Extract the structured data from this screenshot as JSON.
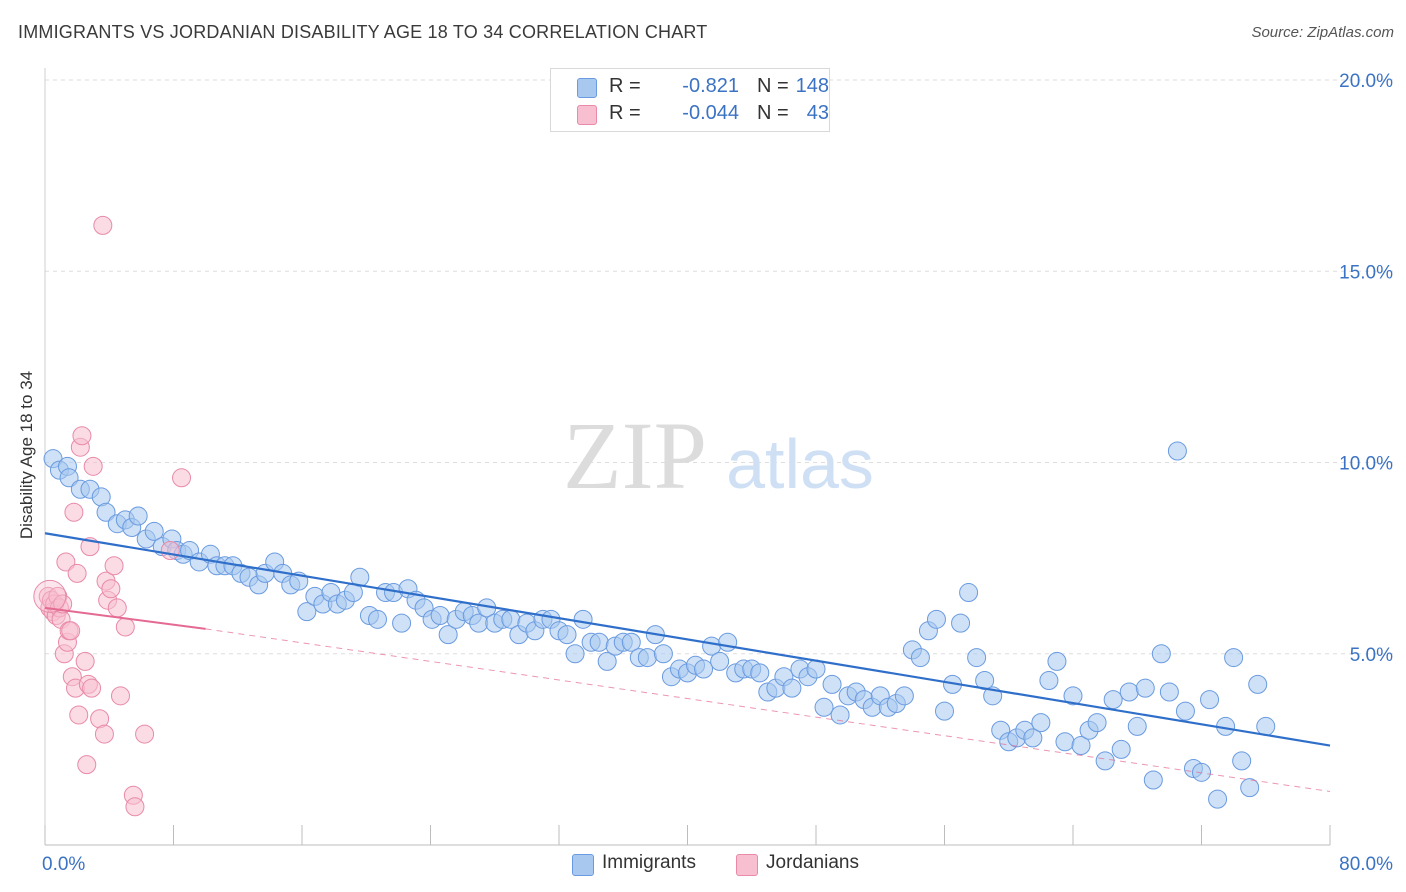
{
  "title": "IMMIGRANTS VS JORDANIAN DISABILITY AGE 18 TO 34 CORRELATION CHART",
  "source": "Source: ZipAtlas.com",
  "watermark": {
    "zip": "ZIP",
    "atlas": "atlas"
  },
  "legend": {
    "rows": [
      {
        "r_label": "R =",
        "r_value": "-0.821",
        "n_label": "N =",
        "n_value": "148",
        "color": "#a8c8f0",
        "border": "#6a9be0"
      },
      {
        "r_label": "R =",
        "r_value": "-0.044",
        "n_label": "N =",
        "n_value": "43",
        "color": "#f8bfd0",
        "border": "#e88aa8"
      }
    ]
  },
  "bottom_legend": [
    {
      "label": "Immigrants",
      "color": "#a8c8f0",
      "border": "#6a9be0"
    },
    {
      "label": "Jordanians",
      "color": "#f8bfd0",
      "border": "#e88aa8"
    }
  ],
  "chart_data": {
    "type": "scatter",
    "title": "IMMIGRANTS VS JORDANIAN DISABILITY AGE 18 TO 34 CORRELATION CHART",
    "xlabel": "",
    "ylabel": "Disability Age 18 to 34",
    "xlim": [
      0,
      80
    ],
    "ylim": [
      0,
      20
    ],
    "x_tick_labels": [
      {
        "value": 0,
        "label": "0.0%"
      },
      {
        "value": 80,
        "label": "80.0%"
      }
    ],
    "y_tick_labels": [
      {
        "value": 5,
        "label": "5.0%"
      },
      {
        "value": 10,
        "label": "10.0%"
      },
      {
        "value": 15,
        "label": "15.0%"
      },
      {
        "value": 20,
        "label": "20.0%"
      }
    ],
    "grid": true,
    "legend_position": "top-center",
    "series": [
      {
        "name": "Immigrants",
        "color": "#a8c8f0",
        "stroke": "#6a9be0",
        "trend": {
          "x": [
            0,
            80
          ],
          "y": [
            8.15,
            2.6
          ],
          "color": "#2f6fca"
        },
        "points": [
          [
            0.5,
            10.1
          ],
          [
            0.9,
            9.8
          ],
          [
            1.4,
            9.9
          ],
          [
            1.5,
            9.6
          ],
          [
            2.2,
            9.3
          ],
          [
            2.8,
            9.3
          ],
          [
            3.5,
            9.1
          ],
          [
            3.8,
            8.7
          ],
          [
            4.5,
            8.4
          ],
          [
            5.0,
            8.5
          ],
          [
            5.4,
            8.3
          ],
          [
            5.8,
            8.6
          ],
          [
            6.3,
            8.0
          ],
          [
            6.8,
            8.2
          ],
          [
            7.3,
            7.8
          ],
          [
            7.9,
            8.0
          ],
          [
            8.2,
            7.7
          ],
          [
            8.6,
            7.6
          ],
          [
            9.0,
            7.7
          ],
          [
            9.6,
            7.4
          ],
          [
            10.3,
            7.6
          ],
          [
            10.7,
            7.3
          ],
          [
            11.2,
            7.3
          ],
          [
            11.7,
            7.3
          ],
          [
            12.2,
            7.1
          ],
          [
            12.7,
            7.0
          ],
          [
            13.3,
            6.8
          ],
          [
            13.7,
            7.1
          ],
          [
            14.3,
            7.4
          ],
          [
            14.8,
            7.1
          ],
          [
            15.3,
            6.8
          ],
          [
            15.8,
            6.9
          ],
          [
            16.3,
            6.1
          ],
          [
            16.8,
            6.5
          ],
          [
            17.3,
            6.3
          ],
          [
            17.8,
            6.6
          ],
          [
            18.2,
            6.3
          ],
          [
            18.7,
            6.4
          ],
          [
            19.2,
            6.6
          ],
          [
            19.6,
            7.0
          ],
          [
            20.2,
            6.0
          ],
          [
            20.7,
            5.9
          ],
          [
            21.2,
            6.6
          ],
          [
            21.7,
            6.6
          ],
          [
            22.2,
            5.8
          ],
          [
            22.6,
            6.7
          ],
          [
            23.1,
            6.4
          ],
          [
            23.6,
            6.2
          ],
          [
            24.1,
            5.9
          ],
          [
            24.6,
            6.0
          ],
          [
            25.1,
            5.5
          ],
          [
            25.6,
            5.9
          ],
          [
            26.1,
            6.1
          ],
          [
            26.6,
            6.0
          ],
          [
            27.0,
            5.8
          ],
          [
            27.5,
            6.2
          ],
          [
            28.0,
            5.8
          ],
          [
            28.5,
            5.9
          ],
          [
            29.0,
            5.9
          ],
          [
            29.5,
            5.5
          ],
          [
            30.0,
            5.8
          ],
          [
            30.5,
            5.6
          ],
          [
            31.0,
            5.9
          ],
          [
            31.5,
            5.9
          ],
          [
            32.0,
            5.6
          ],
          [
            32.5,
            5.5
          ],
          [
            33.0,
            5.0
          ],
          [
            33.5,
            5.9
          ],
          [
            34.0,
            5.3
          ],
          [
            34.5,
            5.3
          ],
          [
            35.0,
            4.8
          ],
          [
            35.5,
            5.2
          ],
          [
            36.0,
            5.3
          ],
          [
            36.5,
            5.3
          ],
          [
            37.0,
            4.9
          ],
          [
            37.5,
            4.9
          ],
          [
            38.0,
            5.5
          ],
          [
            38.5,
            5.0
          ],
          [
            39.0,
            4.4
          ],
          [
            39.5,
            4.6
          ],
          [
            40.0,
            4.5
          ],
          [
            40.5,
            4.7
          ],
          [
            41.0,
            4.6
          ],
          [
            41.5,
            5.2
          ],
          [
            42.0,
            4.8
          ],
          [
            42.5,
            5.3
          ],
          [
            43.0,
            4.5
          ],
          [
            43.5,
            4.6
          ],
          [
            44.0,
            4.6
          ],
          [
            44.5,
            4.5
          ],
          [
            45.0,
            4.0
          ],
          [
            45.5,
            4.1
          ],
          [
            46.0,
            4.4
          ],
          [
            46.5,
            4.1
          ],
          [
            47.0,
            4.6
          ],
          [
            47.5,
            4.4
          ],
          [
            48.0,
            4.6
          ],
          [
            48.5,
            3.6
          ],
          [
            49.0,
            4.2
          ],
          [
            49.5,
            3.4
          ],
          [
            50.0,
            3.9
          ],
          [
            50.5,
            4.0
          ],
          [
            51.0,
            3.8
          ],
          [
            51.5,
            3.6
          ],
          [
            52.0,
            3.9
          ],
          [
            52.5,
            3.6
          ],
          [
            53.0,
            3.7
          ],
          [
            53.5,
            3.9
          ],
          [
            54.0,
            5.1
          ],
          [
            54.5,
            4.9
          ],
          [
            55.0,
            5.6
          ],
          [
            55.5,
            5.9
          ],
          [
            56.0,
            3.5
          ],
          [
            56.5,
            4.2
          ],
          [
            57.0,
            5.8
          ],
          [
            57.5,
            6.6
          ],
          [
            58.0,
            4.9
          ],
          [
            58.5,
            4.3
          ],
          [
            59.0,
            3.9
          ],
          [
            59.5,
            3.0
          ],
          [
            60.0,
            2.7
          ],
          [
            60.5,
            2.8
          ],
          [
            61.0,
            3.0
          ],
          [
            61.5,
            2.8
          ],
          [
            62.0,
            3.2
          ],
          [
            62.5,
            4.3
          ],
          [
            63.0,
            4.8
          ],
          [
            63.5,
            2.7
          ],
          [
            64.0,
            3.9
          ],
          [
            64.5,
            2.6
          ],
          [
            65.0,
            3.0
          ],
          [
            65.5,
            3.2
          ],
          [
            66.0,
            2.2
          ],
          [
            66.5,
            3.8
          ],
          [
            67.0,
            2.5
          ],
          [
            67.5,
            4.0
          ],
          [
            68.0,
            3.1
          ],
          [
            68.5,
            4.1
          ],
          [
            69.0,
            1.7
          ],
          [
            69.5,
            5.0
          ],
          [
            70.0,
            4.0
          ],
          [
            70.5,
            10.3
          ],
          [
            71.0,
            3.5
          ],
          [
            71.5,
            2.0
          ],
          [
            72.0,
            1.9
          ],
          [
            72.5,
            3.8
          ],
          [
            73.0,
            1.2
          ],
          [
            73.5,
            3.1
          ],
          [
            74.0,
            4.9
          ],
          [
            74.5,
            2.2
          ],
          [
            75.0,
            1.5
          ],
          [
            75.5,
            4.2
          ],
          [
            76.0,
            3.1
          ]
        ]
      },
      {
        "name": "Jordanians",
        "color": "#f8bfd0",
        "stroke": "#e88aa8",
        "trend_solid": {
          "x": [
            0,
            10
          ],
          "y": [
            6.2,
            5.65
          ],
          "color": "#e46a92"
        },
        "trend_dashed": {
          "x": [
            10,
            80
          ],
          "y": [
            5.65,
            1.4
          ],
          "color": "#e46a92"
        },
        "points": [
          [
            0.2,
            6.5
          ],
          [
            0.3,
            6.2
          ],
          [
            0.4,
            6.4
          ],
          [
            0.5,
            6.1
          ],
          [
            0.6,
            6.3
          ],
          [
            0.7,
            6.0
          ],
          [
            0.8,
            6.5
          ],
          [
            0.9,
            6.2
          ],
          [
            1.0,
            5.9
          ],
          [
            1.1,
            6.3
          ],
          [
            1.2,
            5.0
          ],
          [
            1.3,
            7.4
          ],
          [
            1.4,
            5.3
          ],
          [
            1.5,
            5.6
          ],
          [
            1.6,
            5.6
          ],
          [
            1.7,
            4.4
          ],
          [
            1.8,
            8.7
          ],
          [
            1.9,
            4.1
          ],
          [
            2.0,
            7.1
          ],
          [
            2.1,
            3.4
          ],
          [
            2.2,
            10.4
          ],
          [
            2.3,
            10.7
          ],
          [
            2.5,
            4.8
          ],
          [
            2.6,
            2.1
          ],
          [
            2.7,
            4.2
          ],
          [
            2.8,
            7.8
          ],
          [
            2.9,
            4.1
          ],
          [
            3.0,
            9.9
          ],
          [
            3.4,
            3.3
          ],
          [
            3.6,
            16.2
          ],
          [
            3.7,
            2.9
          ],
          [
            3.8,
            6.9
          ],
          [
            3.9,
            6.4
          ],
          [
            4.1,
            6.7
          ],
          [
            4.3,
            7.3
          ],
          [
            4.5,
            6.2
          ],
          [
            4.7,
            3.9
          ],
          [
            5.0,
            5.7
          ],
          [
            5.5,
            1.3
          ],
          [
            5.6,
            1.0
          ],
          [
            6.2,
            2.9
          ],
          [
            7.8,
            7.7
          ],
          [
            8.5,
            9.6
          ]
        ]
      }
    ]
  }
}
